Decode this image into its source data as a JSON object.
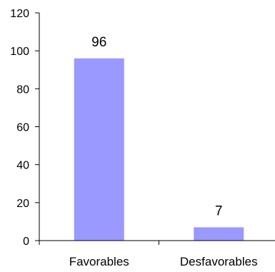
{
  "chart_data": {
    "type": "bar",
    "title": "",
    "xlabel": "",
    "ylabel": "",
    "categories": [
      "Favorables",
      "Desfavorables"
    ],
    "values": [
      96,
      7
    ],
    "data_labels": [
      "96",
      "7"
    ],
    "ylim": [
      0,
      120
    ],
    "yticks": [
      0,
      20,
      40,
      60,
      80,
      100,
      120
    ],
    "ytick_labels": [
      "0",
      "20",
      "40",
      "60",
      "80",
      "100",
      "120"
    ],
    "grid": false,
    "legend": "none",
    "colors": {
      "bar": "#9999ff",
      "axis": "#000000"
    }
  }
}
